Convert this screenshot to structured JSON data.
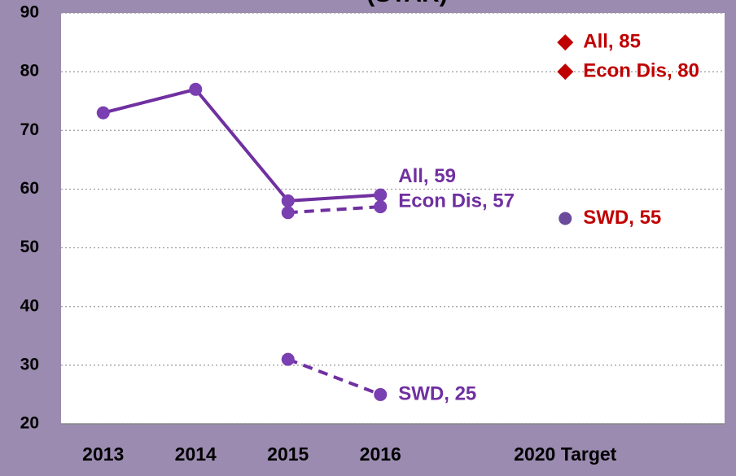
{
  "chart_data": {
    "type": "line",
    "title": "(STAR)",
    "categories": [
      "2013",
      "2014",
      "2015",
      "2016",
      null,
      "2020 Target"
    ],
    "ylim": [
      20,
      90
    ],
    "yticks": [
      20,
      30,
      40,
      50,
      60,
      70,
      80,
      90
    ],
    "grid": true,
    "series": [
      {
        "name": "All",
        "color": "#7030a0",
        "line": "solid",
        "marker": "circle",
        "values": [
          73,
          77,
          58,
          59,
          null,
          null
        ],
        "value_labels": [
          null,
          null,
          null,
          "All, 59",
          null,
          null
        ]
      },
      {
        "name": "Econ Dis",
        "color": "#7030a0",
        "line": "dashed",
        "marker": "circle",
        "values": [
          null,
          null,
          56,
          57,
          null,
          null
        ],
        "value_labels": [
          null,
          null,
          null,
          "Econ Dis, 57",
          null,
          null
        ]
      },
      {
        "name": "SWD",
        "color": "#7030a0",
        "line": "dashed",
        "marker": "circle",
        "values": [
          null,
          null,
          31,
          25,
          null,
          null
        ],
        "value_labels": [
          null,
          null,
          null,
          "SWD, 25",
          null,
          null
        ]
      },
      {
        "color": "#c00000",
        "line": "none",
        "marker": "diamond",
        "values": [
          null,
          null,
          null,
          null,
          null,
          85
        ],
        "value_labels": [
          null,
          null,
          null,
          null,
          null,
          "All, 85"
        ]
      },
      {
        "color": "#c00000",
        "line": "none",
        "marker": "diamond",
        "values": [
          null,
          null,
          null,
          null,
          null,
          80
        ],
        "value_labels": [
          null,
          null,
          null,
          null,
          null,
          "Econ Dis, 80"
        ]
      },
      {
        "color": "#c00000",
        "marker_color": "#6b4a9c",
        "line": "none",
        "marker": "circle",
        "values": [
          null,
          null,
          null,
          null,
          null,
          55
        ],
        "value_labels": [
          null,
          null,
          null,
          null,
          null,
          "SWD, 55"
        ]
      }
    ]
  }
}
